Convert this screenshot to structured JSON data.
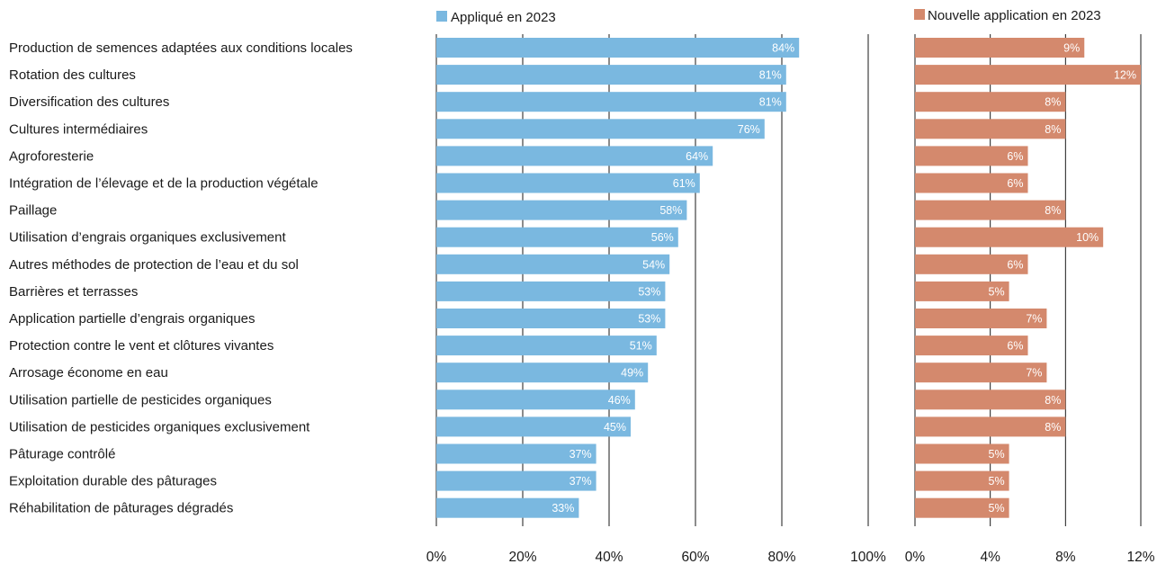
{
  "chart_data": {
    "type": "bar",
    "orientation": "horizontal",
    "categories": [
      "Production de semences adaptées aux conditions locales",
      "Rotation des cultures",
      "Diversification des cultures",
      "Cultures intermédiaires",
      "Agroforesterie",
      "Intégration de l’élevage et de la production végétale",
      "Paillage",
      "Utilisation d’engrais organiques exclusivement",
      "Autres méthodes de protection de l’eau et du sol",
      "Barrières et terrasses",
      "Application partielle d’engrais organiques",
      "Protection contre le vent et clôtures vivantes",
      "Arrosage économe en eau",
      "Utilisation partielle de pesticides organiques",
      "Utilisation de pesticides organiques exclusivement",
      "Pâturage contrôlé",
      "Exploitation durable des pâturages",
      "Réhabilitation de pâturages dégradés"
    ],
    "series": [
      {
        "name": "Appliqué en 2023",
        "color": "#7ab8e0",
        "values": [
          84,
          81,
          81,
          76,
          64,
          61,
          58,
          56,
          54,
          53,
          53,
          51,
          49,
          46,
          45,
          37,
          37,
          33
        ],
        "labels": [
          "84%",
          "81%",
          "81%",
          "76%",
          "64%",
          "61%",
          "58%",
          "56%",
          "54%",
          "53%",
          "53%",
          "51%",
          "49%",
          "46%",
          "45%",
          "37%",
          "37%",
          "33%"
        ],
        "xlim": [
          0,
          100
        ],
        "ticks": [
          "0%",
          "20%",
          "40%",
          "60%",
          "80%",
          "100%"
        ]
      },
      {
        "name": "Nouvelle application en 2023",
        "color": "#d4896d",
        "values": [
          9,
          12,
          8,
          8,
          6,
          6,
          8,
          10,
          6,
          5,
          7,
          6,
          7,
          8,
          8,
          5,
          5,
          5
        ],
        "labels": [
          "9%",
          "12%",
          "8%",
          "8%",
          "6%",
          "6%",
          "8%",
          "10%",
          "6%",
          "5%",
          "7%",
          "6%",
          "7%",
          "8%",
          "8%",
          "5%",
          "5%",
          "5%"
        ],
        "xlim": [
          0,
          12
        ],
        "ticks": [
          "0%",
          "4%",
          "8%",
          "12%"
        ]
      }
    ],
    "grid": true,
    "legend_placement": "top"
  }
}
